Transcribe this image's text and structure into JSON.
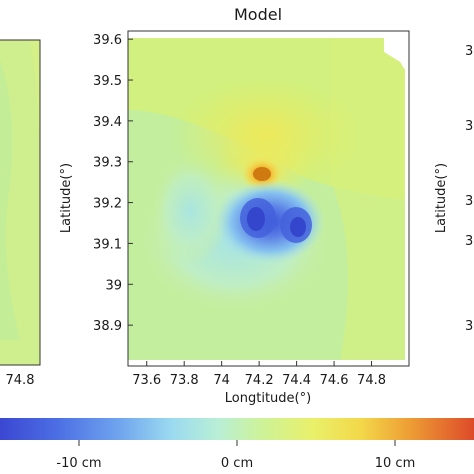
{
  "chart_data": [
    {
      "type": "heatmap",
      "title": "",
      "xlabel": "",
      "ylabel": "",
      "x_ticks": [
        "74.8"
      ],
      "y_ticks": [],
      "note": "left panel, cropped"
    },
    {
      "type": "heatmap",
      "title": "Model",
      "xlabel": "Longtitude(°)",
      "ylabel": "Latitude(°)",
      "xlim": [
        73.5,
        75.0
      ],
      "ylim": [
        38.8,
        39.62
      ],
      "x_ticks": [
        73.6,
        73.8,
        74,
        74.2,
        74.4,
        74.6,
        74.8
      ],
      "x_tick_labels": [
        "73.6",
        "73.8",
        "74",
        "74.2",
        "74.4",
        "74.6",
        "74.8"
      ],
      "y_ticks": [
        38.9,
        39,
        39.1,
        39.2,
        39.3,
        39.4,
        39.5,
        39.6
      ],
      "y_tick_labels": [
        "38.9",
        "39",
        "39.1",
        "39.2",
        "39.3",
        "39.4",
        "39.5",
        "39.6"
      ],
      "features": [
        {
          "kind": "uplift",
          "lon": 74.2,
          "lat": 39.27,
          "value_cm": 10
        },
        {
          "kind": "subsidence",
          "lon": 74.18,
          "lat": 39.16,
          "value_cm": -12
        },
        {
          "kind": "subsidence",
          "lon": 74.38,
          "lat": 39.15,
          "value_cm": -11
        }
      ]
    },
    {
      "type": "heatmap",
      "title": "",
      "xlabel": "",
      "ylabel": "Latitude(°)",
      "y_tick_labels": [
        "3",
        "3",
        "3",
        "3",
        "3"
      ],
      "note": "right panel, cropped"
    }
  ],
  "colorbar": {
    "unit": "cm",
    "range": [
      -15,
      15
    ],
    "tick_labels": [
      "-10 cm",
      "0 cm",
      "10 cm"
    ],
    "tick_values": [
      -10,
      0,
      10
    ],
    "colors": [
      "#3d4fd6",
      "#5e88ee",
      "#8fd0f0",
      "#b8ecd8",
      "#c9f0a0",
      "#e8f060",
      "#f6d040",
      "#f09a30",
      "#e06030"
    ]
  },
  "left_panel": {
    "tick_label": "74.8"
  },
  "right_panel": {
    "ylabel": "Latitude(°)",
    "tick_label": "3"
  }
}
